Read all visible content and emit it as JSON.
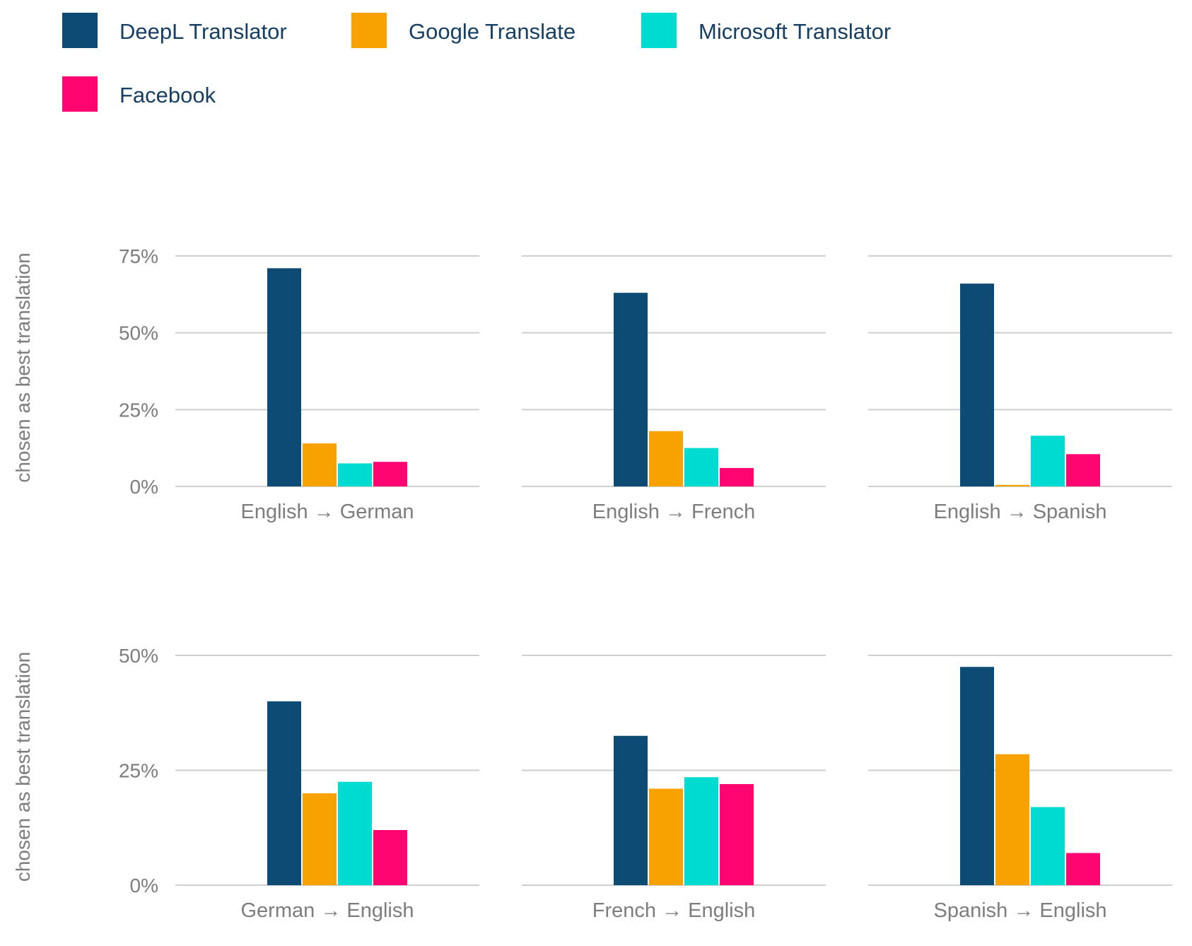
{
  "legend": [
    {
      "name": "DeepL Translator",
      "color": "#0d4a74"
    },
    {
      "name": "Google Translate",
      "color": "#f7a200"
    },
    {
      "name": "Microsoft Translator",
      "color": "#00dbd1"
    },
    {
      "name": "Facebook",
      "color": "#ff0571"
    }
  ],
  "colors": {
    "grid": "#cfcfcf",
    "tick_text": "#7d7d7d",
    "legend_text": "#163f66"
  },
  "chart_data": [
    {
      "type": "bar",
      "xlabel": "English → German",
      "ylabel": "chosen as best translation",
      "ylim": [
        0,
        75
      ],
      "yticks": [
        "0%",
        "25%",
        "50%",
        "75%"
      ],
      "ytick_values": [
        0,
        25,
        50,
        75
      ],
      "series": [
        {
          "name": "DeepL Translator",
          "value": 71
        },
        {
          "name": "Google Translate",
          "value": 14
        },
        {
          "name": "Microsoft Translator",
          "value": 7.5
        },
        {
          "name": "Facebook",
          "value": 8
        }
      ]
    },
    {
      "type": "bar",
      "xlabel": "English → French",
      "ylabel": "",
      "ylim": [
        0,
        75
      ],
      "yticks": [],
      "ytick_values": [
        0,
        25,
        50,
        75
      ],
      "series": [
        {
          "name": "DeepL Translator",
          "value": 63
        },
        {
          "name": "Google Translate",
          "value": 18
        },
        {
          "name": "Microsoft Translator",
          "value": 12.5
        },
        {
          "name": "Facebook",
          "value": 6
        }
      ]
    },
    {
      "type": "bar",
      "xlabel": "English → Spanish",
      "ylabel": "",
      "ylim": [
        0,
        75
      ],
      "yticks": [],
      "ytick_values": [
        0,
        25,
        50,
        75
      ],
      "series": [
        {
          "name": "DeepL Translator",
          "value": 66
        },
        {
          "name": "Google Translate",
          "value": 0.5
        },
        {
          "name": "Microsoft Translator",
          "value": 16.5
        },
        {
          "name": "Facebook",
          "value": 10.5
        }
      ]
    },
    {
      "type": "bar",
      "xlabel": "German → English",
      "ylabel": "chosen as best translation",
      "ylim": [
        0,
        50
      ],
      "yticks": [
        "0%",
        "25%",
        "50%"
      ],
      "ytick_values": [
        0,
        25,
        50
      ],
      "series": [
        {
          "name": "DeepL Translator",
          "value": 40
        },
        {
          "name": "Google Translate",
          "value": 20
        },
        {
          "name": "Microsoft Translator",
          "value": 22.5
        },
        {
          "name": "Facebook",
          "value": 12
        }
      ]
    },
    {
      "type": "bar",
      "xlabel": "French → English",
      "ylabel": "",
      "ylim": [
        0,
        50
      ],
      "yticks": [],
      "ytick_values": [
        0,
        25,
        50
      ],
      "series": [
        {
          "name": "DeepL Translator",
          "value": 32.5
        },
        {
          "name": "Google Translate",
          "value": 21
        },
        {
          "name": "Microsoft Translator",
          "value": 23.5
        },
        {
          "name": "Facebook",
          "value": 22
        }
      ]
    },
    {
      "type": "bar",
      "xlabel": "Spanish → English",
      "ylabel": "",
      "ylim": [
        0,
        50
      ],
      "yticks": [],
      "ytick_values": [
        0,
        25,
        50
      ],
      "series": [
        {
          "name": "DeepL Translator",
          "value": 47.5
        },
        {
          "name": "Google Translate",
          "value": 28.5
        },
        {
          "name": "Microsoft Translator",
          "value": 17
        },
        {
          "name": "Facebook",
          "value": 7
        }
      ]
    }
  ]
}
